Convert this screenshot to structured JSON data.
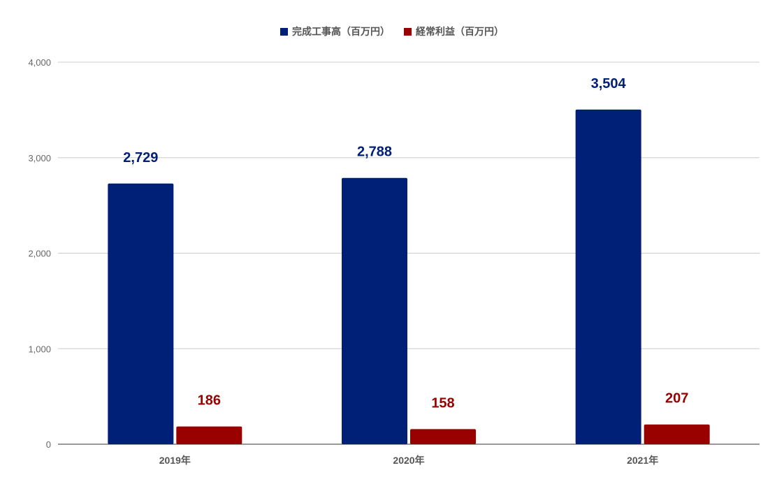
{
  "chart_data": {
    "type": "bar",
    "categories": [
      "2019年",
      "2020年",
      "2021年"
    ],
    "series": [
      {
        "name": "完成工事高（百万円）",
        "values": [
          2729,
          2788,
          3504
        ],
        "labels": [
          "2,729",
          "2,788",
          "3,504"
        ],
        "color": "#002078"
      },
      {
        "name": "経常利益（百万円）",
        "values": [
          186,
          158,
          207
        ],
        "labels": [
          "186",
          "158",
          "207"
        ],
        "color": "#990000"
      }
    ],
    "ylim": [
      0,
      4000
    ],
    "yticks": [
      0,
      1000,
      2000,
      3000,
      4000
    ],
    "ytick_labels": [
      "0",
      "1,000",
      "2,000",
      "3,000",
      "4,000"
    ],
    "grid": true,
    "legend": "top-center"
  }
}
